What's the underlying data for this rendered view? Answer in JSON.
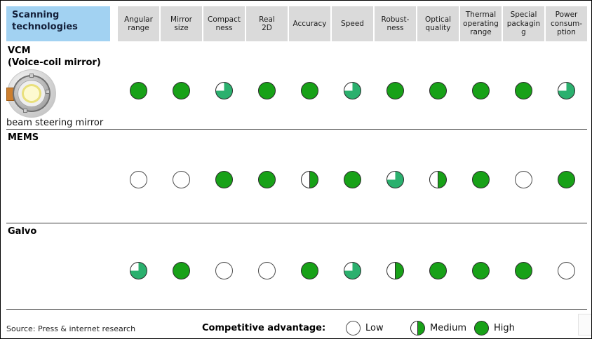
{
  "header": {
    "title": "Scanning\ntechnologies",
    "columns": [
      {
        "label": "Angular\nrange"
      },
      {
        "label": "Mirror\nsize"
      },
      {
        "label": "Compact\nness"
      },
      {
        "label": "Real\n2D"
      },
      {
        "label": "Accuracy"
      },
      {
        "label": "Speed"
      },
      {
        "label": "Robust-\nness"
      },
      {
        "label": "Optical\nquality"
      },
      {
        "label": "Thermal\noperating\nrange"
      },
      {
        "label": "Special\npackagin\ng"
      },
      {
        "label": "Power\nconsum-\nption"
      }
    ]
  },
  "rows": [
    {
      "name": "VCM",
      "subtitle": "(Voice-coil mirror)",
      "image": {
        "icon": "beam-steering-mirror-photo",
        "caption": "beam steering mirror"
      },
      "ratings": [
        "high",
        "high",
        "three-quarter",
        "high",
        "high",
        "three-quarter",
        "high",
        "high",
        "high",
        "high",
        "three-quarter"
      ]
    },
    {
      "name": "MEMS",
      "ratings": [
        "low",
        "low",
        "high",
        "high",
        "medium",
        "high",
        "three-quarter",
        "medium",
        "high",
        "low",
        "high"
      ]
    },
    {
      "name": "Galvo",
      "ratings": [
        "three-quarter",
        "high",
        "low",
        "low",
        "high",
        "three-quarter",
        "medium",
        "high",
        "high",
        "high",
        "low"
      ]
    }
  ],
  "legend": {
    "title": "Competitive advantage:",
    "items": [
      {
        "label": "Low",
        "value": "low"
      },
      {
        "label": "Medium",
        "value": "medium"
      },
      {
        "label": "High",
        "value": "high"
      }
    ]
  },
  "footer": {
    "source": "Source: Press & internet research"
  },
  "colors": {
    "header_blue": "#a2d2f2",
    "header_gray": "#dadada",
    "green_high": "#18a118",
    "green_partial": "#2bb06e",
    "ball_border": "#2b2b2b"
  },
  "chart_data": {
    "type": "table",
    "title": "Scanning technologies",
    "columns": [
      "Angular range",
      "Mirror size",
      "Compactness",
      "Real 2D",
      "Accuracy",
      "Speed",
      "Robustness",
      "Optical quality",
      "Thermal operating range",
      "Special packaging",
      "Power consumption"
    ],
    "rows": [
      {
        "name": "VCM (Voice-coil mirror)",
        "ratings": [
          "high",
          "high",
          "three-quarter",
          "high",
          "high",
          "three-quarter",
          "high",
          "high",
          "high",
          "high",
          "three-quarter"
        ]
      },
      {
        "name": "MEMS",
        "ratings": [
          "low",
          "low",
          "high",
          "high",
          "medium",
          "high",
          "three-quarter",
          "medium",
          "high",
          "low",
          "high"
        ]
      },
      {
        "name": "Galvo",
        "ratings": [
          "three-quarter",
          "high",
          "low",
          "low",
          "high",
          "three-quarter",
          "medium",
          "high",
          "high",
          "high",
          "low"
        ]
      }
    ],
    "scale": {
      "low": 0,
      "medium": 0.5,
      "three-quarter": 0.75,
      "high": 1
    },
    "legend": [
      "Low",
      "Medium",
      "High"
    ],
    "legend_title": "Competitive advantage:",
    "source": "Source: Press & internet research"
  }
}
